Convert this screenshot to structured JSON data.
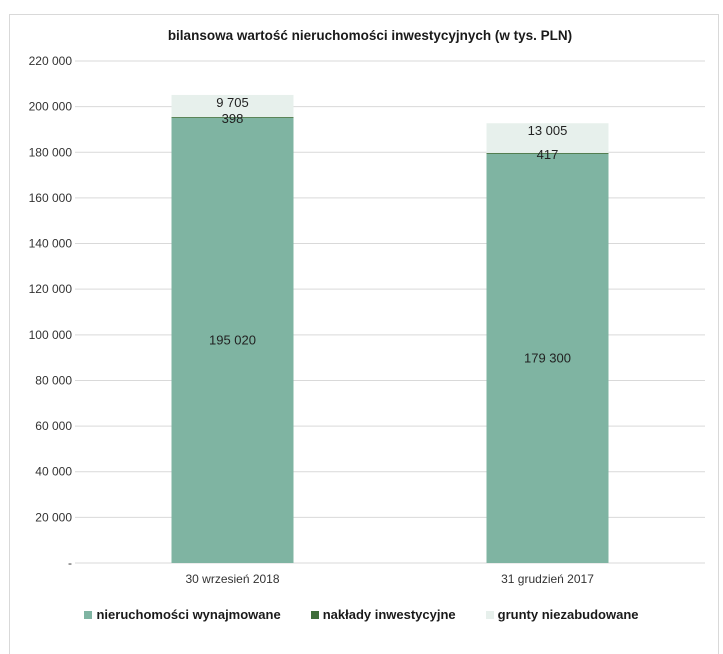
{
  "colors": {
    "rented": "#7fb4a2",
    "investment": "#3f6e3a",
    "land": "#e7f0ec",
    "grid": "#d9d9d9"
  },
  "chart_data": {
    "type": "bar",
    "stacked": true,
    "title": "bilansowa wartość nieruchomości inwestycyjnych (w tys. PLN)",
    "xlabel": "",
    "ylabel": "",
    "categories": [
      "30 wrzesień 2018",
      "31 grudzień 2017"
    ],
    "series": [
      {
        "name": "nieruchomości wynajmowane",
        "values": [
          195020,
          179300
        ],
        "labels": [
          "195 020",
          "179 300"
        ]
      },
      {
        "name": "nakłady inwestycyjne",
        "values": [
          398,
          417
        ],
        "labels": [
          "398",
          "417"
        ]
      },
      {
        "name": "grunty niezabudowane",
        "values": [
          9705,
          13005
        ],
        "labels": [
          "9 705",
          "13 005"
        ]
      }
    ],
    "ylim": [
      0,
      220000
    ],
    "yticks": [
      0,
      20000,
      40000,
      60000,
      80000,
      100000,
      120000,
      140000,
      160000,
      180000,
      200000,
      220000
    ],
    "ytick_labels": [
      "-",
      "20 000",
      "40 000",
      "60 000",
      "80 000",
      "100 000",
      "120 000",
      "140 000",
      "160 000",
      "180 000",
      "200 000",
      "220 000"
    ],
    "grid": true,
    "legend": "bottom"
  }
}
